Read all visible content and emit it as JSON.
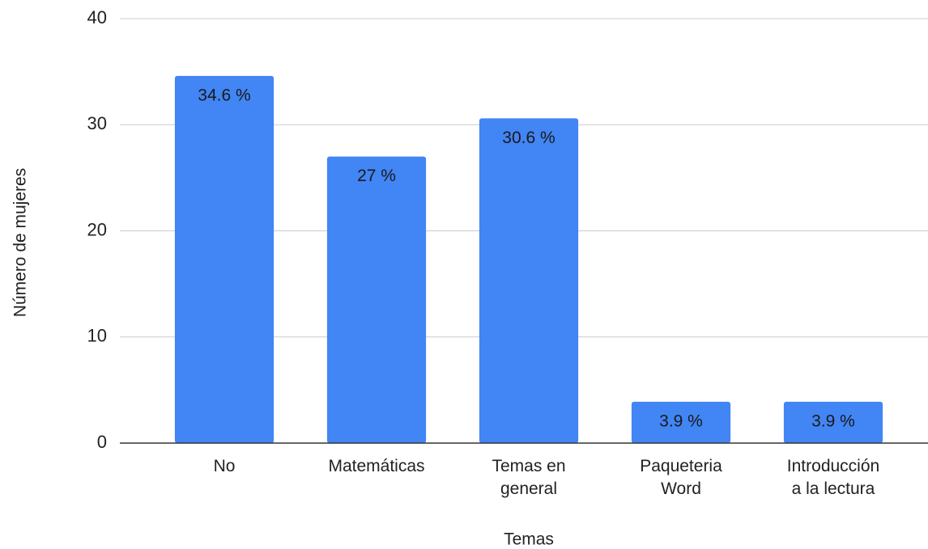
{
  "chart_data": {
    "type": "bar",
    "x_label": "Temas",
    "y_label": "Número de mujeres",
    "categories": [
      "No",
      "Matemáticas",
      "Temas en\ngeneral",
      "Paqueteria\nWord",
      "Introducción\na la lectura"
    ],
    "values": [
      34.6,
      27,
      30.6,
      3.9,
      3.9
    ],
    "value_labels": [
      "34.6 %",
      "27 %",
      "30.6 %",
      "3.9 %",
      "3.9 %"
    ],
    "color": "#4285f4",
    "ylim": [
      0,
      40
    ],
    "yticks": [
      0,
      10,
      20,
      30,
      40
    ],
    "grid": true
  }
}
